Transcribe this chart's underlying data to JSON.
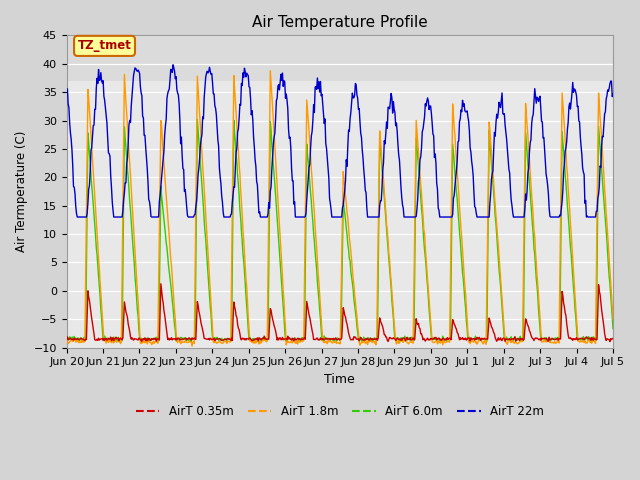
{
  "title": "Air Temperature Profile",
  "ylabel": "Air Termperature (C)",
  "xlabel": "Time",
  "annotation": "TZ_tmet",
  "ylim": [
    -10,
    45
  ],
  "yticks": [
    -10,
    -5,
    0,
    5,
    10,
    15,
    20,
    25,
    30,
    35,
    40,
    45
  ],
  "series": [
    {
      "label": "AirT 0.35m",
      "color": "#cc0000"
    },
    {
      "label": "AirT 1.8m",
      "color": "#ff9900"
    },
    {
      "label": "AirT 6.0m",
      "color": "#33cc00"
    },
    {
      "label": "AirT 22m",
      "color": "#0000cc"
    }
  ],
  "x_tick_labels": [
    "Jun 20",
    "Jun 21",
    "Jun 22",
    "Jun 23",
    "Jun 24",
    "Jun 25",
    "Jun 26",
    "Jun 27",
    "Jun 28",
    "Jun 29",
    "Jun 30",
    "Jul 1",
    "Jul 2",
    "Jul 3",
    "Jul 4",
    "Jul 5"
  ]
}
